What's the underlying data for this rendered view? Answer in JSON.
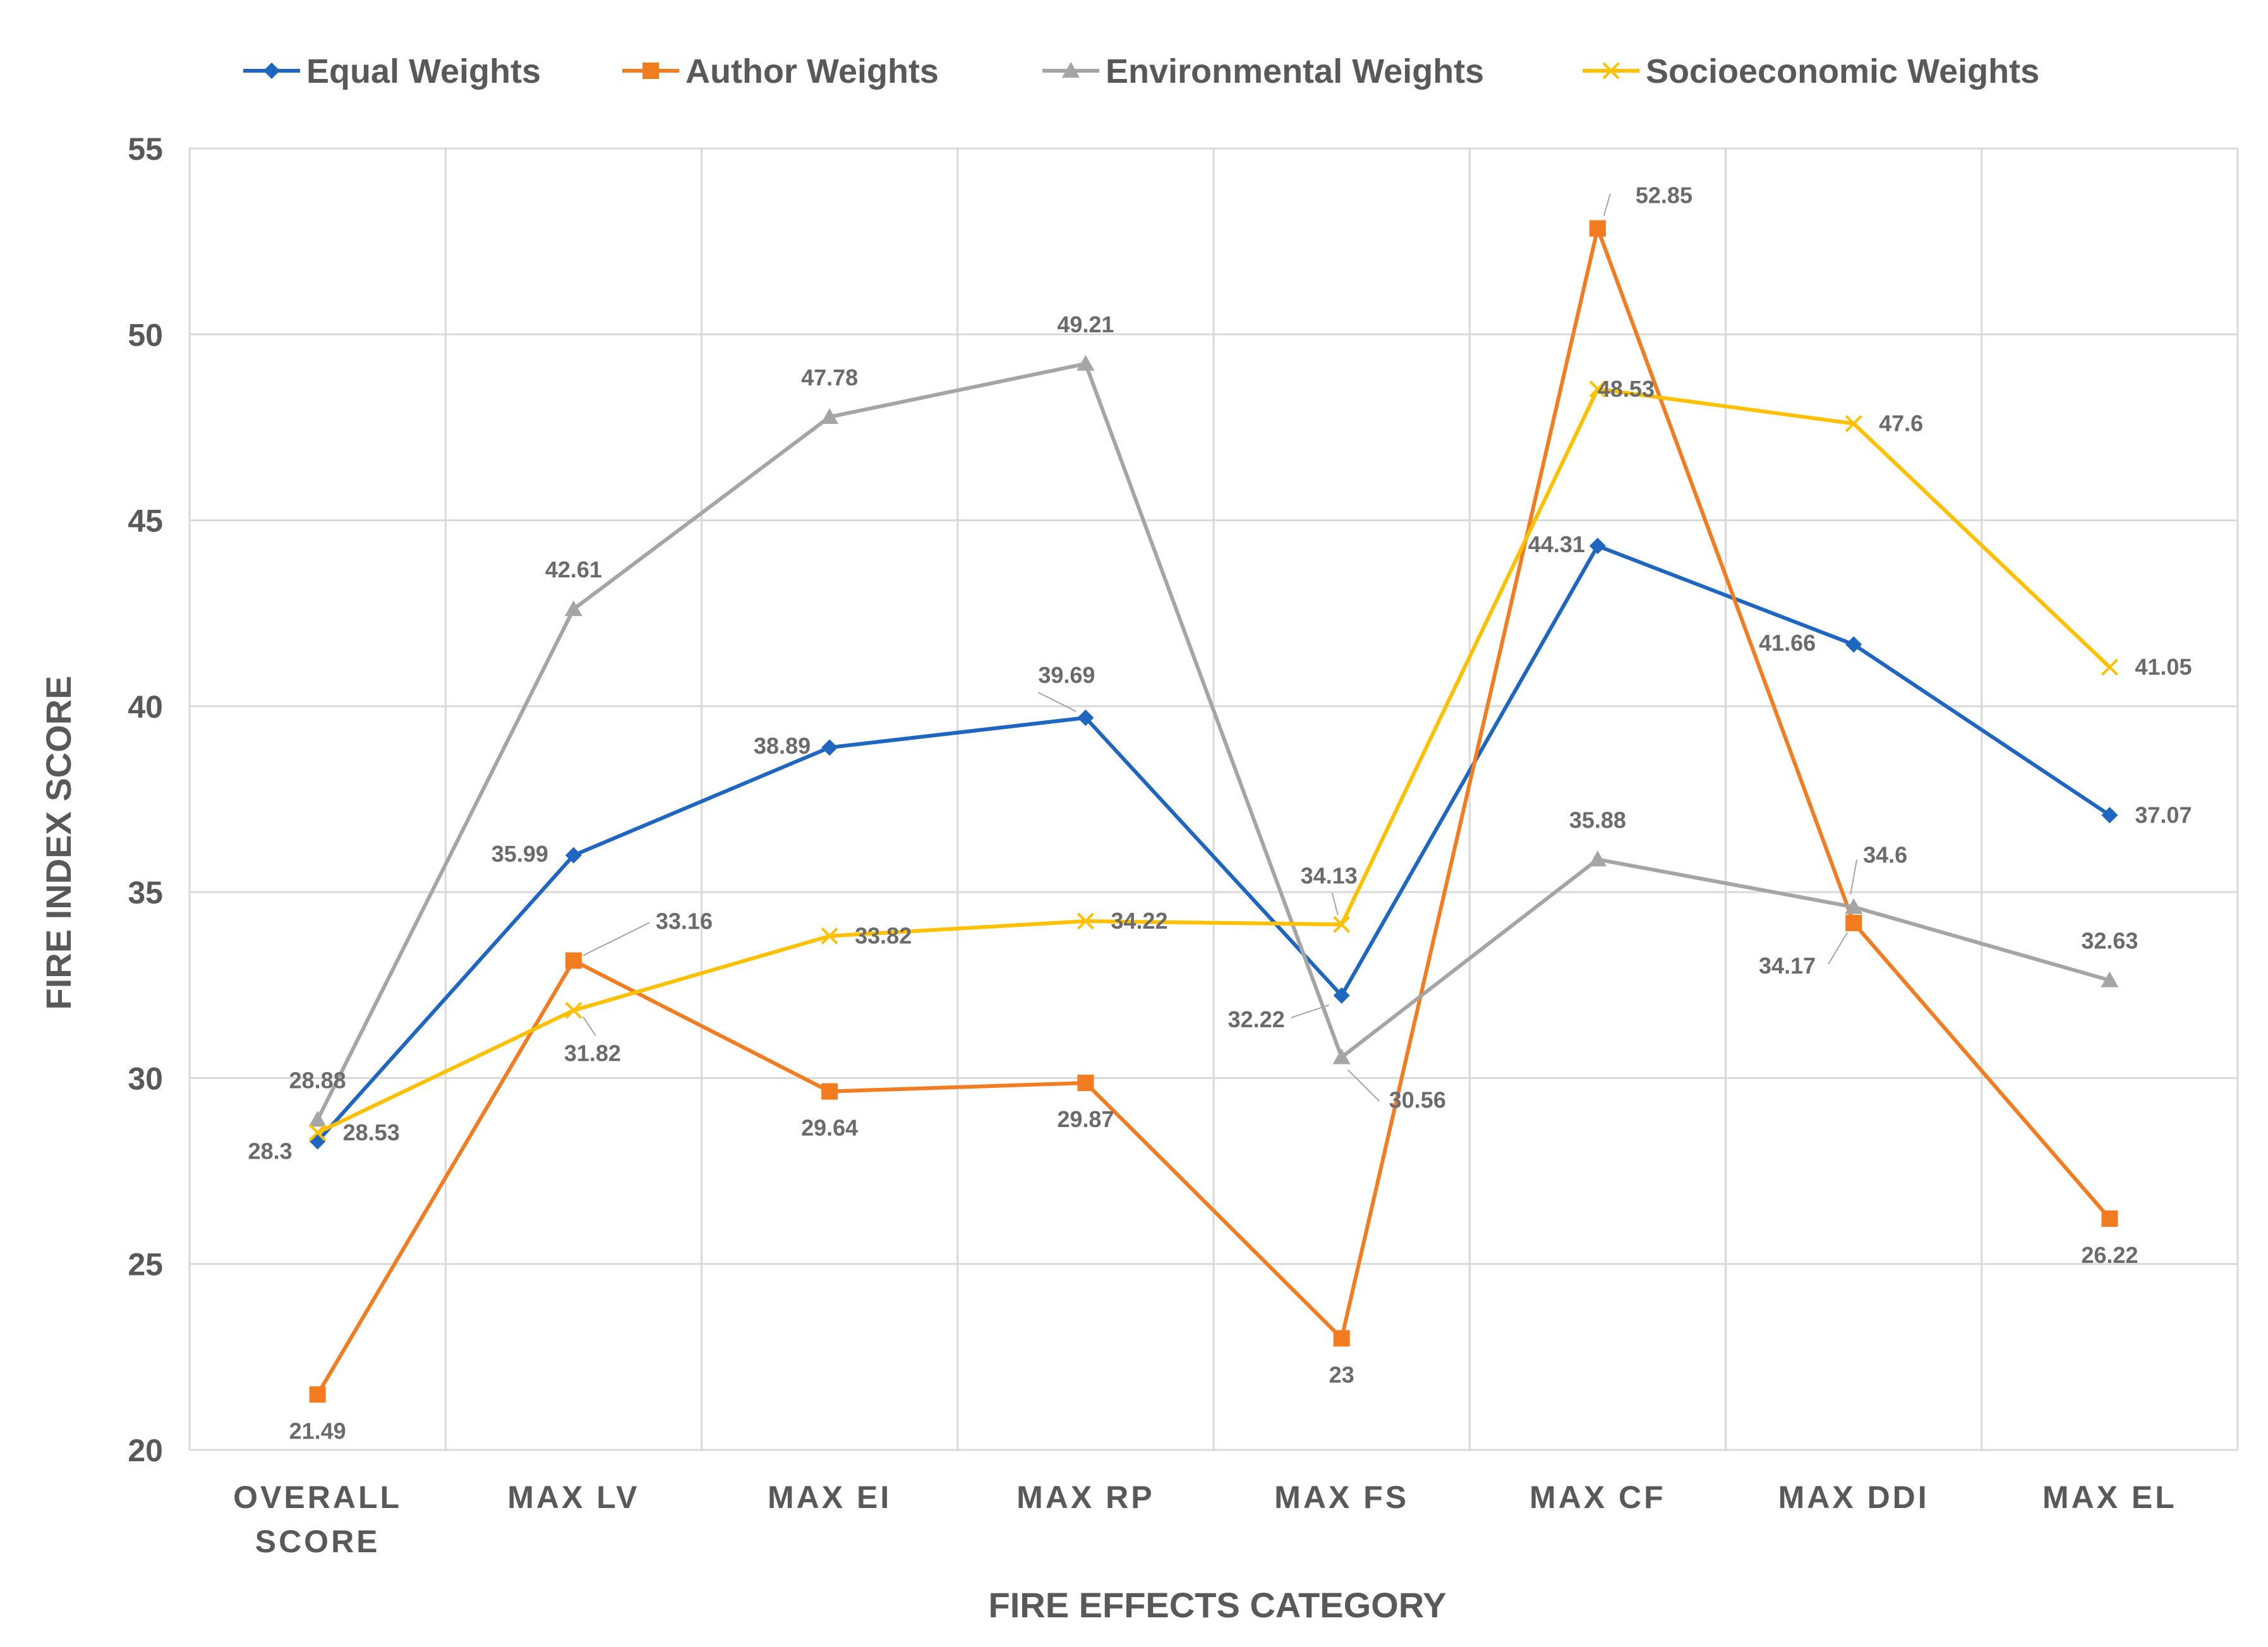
{
  "chart_data": {
    "type": "line",
    "title": "",
    "xlabel": "FIRE EFFECTS CATEGORY",
    "ylabel": "FIRE INDEX SCORE",
    "categories": [
      [
        "OVERALL",
        "SCORE"
      ],
      [
        "MAX LV"
      ],
      [
        "MAX EI"
      ],
      [
        "MAX RP"
      ],
      [
        "MAX FS"
      ],
      [
        "MAX CF"
      ],
      [
        "MAX DDI"
      ],
      [
        "MAX EL"
      ]
    ],
    "ylim": [
      20,
      55
    ],
    "yticks": [
      20,
      25,
      30,
      35,
      40,
      45,
      50,
      55
    ],
    "grid": true,
    "legend_position": "top",
    "series": [
      {
        "name": "Equal Weights",
        "color": "#1f66c1",
        "marker": "diamond",
        "values": [
          28.3,
          35.99,
          38.89,
          39.69,
          32.22,
          44.31,
          41.66,
          37.07
        ],
        "labels": [
          "28.3",
          "35.99",
          "38.89",
          "39.69",
          "32.22",
          "44.31",
          "41.66",
          "37.07"
        ]
      },
      {
        "name": "Author Weights",
        "color": "#f47c20",
        "marker": "square",
        "values": [
          21.49,
          33.16,
          29.64,
          29.87,
          23,
          52.85,
          34.17,
          26.22
        ],
        "labels": [
          "21.49",
          "33.16",
          "29.64",
          "29.87",
          "23",
          "52.85",
          "34.17",
          "26.22"
        ]
      },
      {
        "name": "Environmental Weights",
        "color": "#a5a5a5",
        "marker": "triangle",
        "values": [
          28.88,
          42.61,
          47.78,
          49.21,
          30.56,
          35.88,
          34.6,
          32.63
        ],
        "labels": [
          "28.88",
          "42.61",
          "47.78",
          "49.21",
          "30.56",
          "35.88",
          "34.6",
          "32.63"
        ]
      },
      {
        "name": "Socioeconomic Weights",
        "color": "#ffc000",
        "marker": "x",
        "values": [
          28.53,
          31.82,
          33.82,
          34.22,
          34.13,
          48.53,
          47.6,
          41.05
        ],
        "labels": [
          "28.53",
          "31.82",
          "33.82",
          "34.22",
          "34.13",
          "48.53",
          "47.6",
          "41.05"
        ]
      }
    ]
  }
}
